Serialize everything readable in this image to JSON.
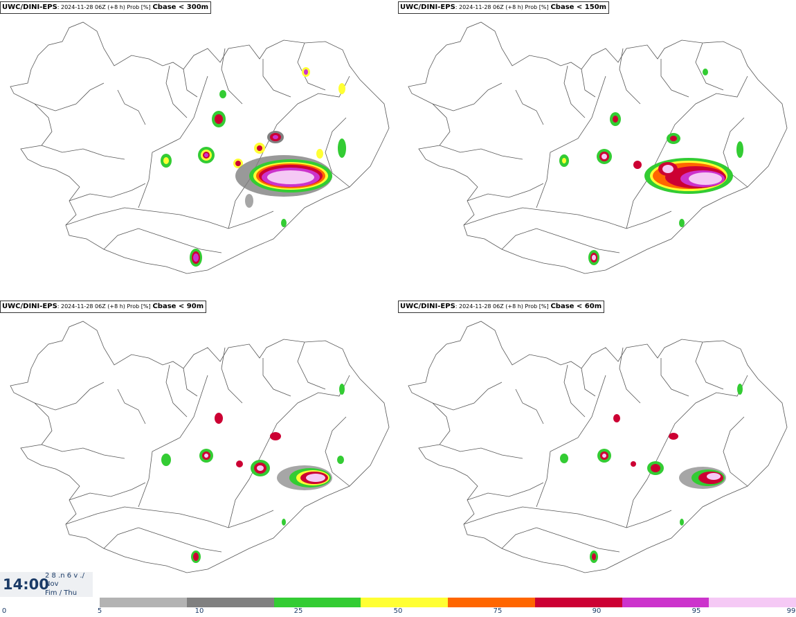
{
  "panels": [
    {
      "model": "UWC/DINI-EPS",
      "meta": ": 2024-11-28 06Z (+8 h) Prob [%]",
      "threshold": "Cbase < 300m"
    },
    {
      "model": "UWC/DINI-EPS",
      "meta": ": 2024-11-28 06Z (+8 h) Prob [%]",
      "threshold": "Cbase < 150m"
    },
    {
      "model": "UWC/DINI-EPS",
      "meta": ": 2024-11-28 06Z (+8 h) Prob [%]",
      "threshold": "Cbase < 90m"
    },
    {
      "model": "UWC/DINI-EPS",
      "meta": ": 2024-11-28 06Z (+8 h) Prob [%]",
      "threshold": "Cbase < 60m"
    }
  ],
  "timebox": {
    "time": "14:00",
    "line1": "2 8 .n 6 v ./",
    "line2": "Nov",
    "line3": "Fim / Thu"
  },
  "colorbar": {
    "ticks": [
      "0",
      "5",
      "10",
      "25",
      "50",
      "75",
      "90",
      "95",
      "99"
    ],
    "colors": [
      "#b3b3b3",
      "#808080",
      "#33cc33",
      "#ffff33",
      "#ff6600",
      "#cc0033",
      "#cc33cc",
      "#f5c9f5"
    ]
  }
}
